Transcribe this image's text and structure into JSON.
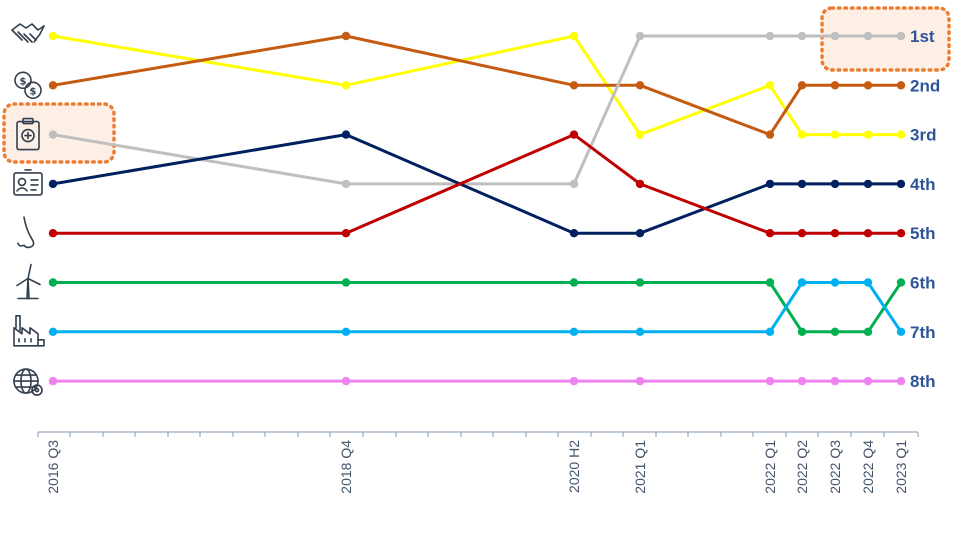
{
  "chart_data": {
    "type": "line",
    "categories": [
      "2016 Q3",
      "2018 Q4",
      "2020 H2",
      "2021 Q1",
      "2022 Q1",
      "2022 Q2",
      "2022 Q3",
      "2022 Q4",
      "2023 Q1"
    ],
    "rank_labels": [
      "1st",
      "2nd",
      "3rd",
      "4th",
      "5th",
      "6th",
      "7th",
      "8th"
    ],
    "y_axis": {
      "quantity": "rank",
      "range": [
        1,
        8
      ],
      "reversed": true
    },
    "grid": false,
    "legend": "none",
    "series": [
      {
        "icon": "handshake-icon",
        "color": "#FFFF00",
        "values": [
          1,
          2,
          1,
          3,
          2,
          3,
          3,
          3,
          3
        ]
      },
      {
        "icon": "coins-icon",
        "color": "#C55A11",
        "values": [
          2,
          1,
          2,
          2,
          3,
          2,
          2,
          2,
          2
        ]
      },
      {
        "icon": "medical-clipboard-icon",
        "color": "#BFBFBF",
        "values": [
          3,
          4,
          4,
          1,
          1,
          1,
          1,
          1,
          1
        ]
      },
      {
        "icon": "id-badge-icon",
        "color": "#002060",
        "values": [
          4,
          3,
          5,
          5,
          4,
          4,
          4,
          4,
          4
        ]
      },
      {
        "icon": "nose-icon",
        "color": "#C00000",
        "values": [
          5,
          5,
          3,
          4,
          5,
          5,
          5,
          5,
          5
        ]
      },
      {
        "icon": "wind-turbine-icon",
        "color": "#00B050",
        "values": [
          6,
          6,
          6,
          6,
          6,
          7,
          7,
          7,
          6
        ]
      },
      {
        "icon": "factory-icon",
        "color": "#00B0F0",
        "values": [
          7,
          7,
          7,
          7,
          7,
          6,
          6,
          6,
          7
        ]
      },
      {
        "icon": "globe-gear-icon",
        "color": "#EE82EE",
        "values": [
          8,
          8,
          8,
          8,
          8,
          8,
          8,
          8,
          8
        ]
      }
    ],
    "highlights": [
      {
        "target": "medical-clipboard-icon",
        "color": "#ED7D31",
        "fill": "#FBE5D6"
      },
      {
        "target": "rank-1st",
        "color": "#ED7D31",
        "fill": "#FBE5D6"
      }
    ]
  }
}
